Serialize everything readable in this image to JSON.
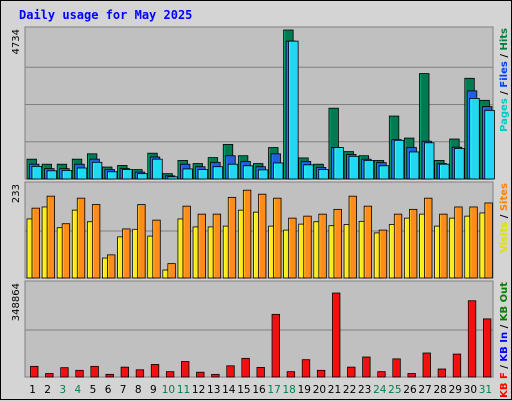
{
  "chart_data": {
    "type": "bar",
    "title": "Daily usage for May 2025",
    "days": [
      "1",
      "2",
      "3",
      "4",
      "5",
      "6",
      "7",
      "8",
      "9",
      "10",
      "11",
      "12",
      "13",
      "14",
      "15",
      "16",
      "17",
      "18",
      "19",
      "20",
      "21",
      "22",
      "23",
      "24",
      "25",
      "26",
      "27",
      "28",
      "29",
      "30",
      "31"
    ],
    "weekend_days": [
      "3",
      "4",
      "10",
      "11",
      "17",
      "18",
      "24",
      "25",
      "31"
    ],
    "panels": [
      {
        "id": "pages-files-hits",
        "max_label": "4734",
        "ymax": 4734,
        "legend": [
          {
            "name": "Pages",
            "color": "#00c8c8"
          },
          {
            "name": "Files",
            "color": "#0040ff"
          },
          {
            "name": "Hits",
            "color": "#008040"
          }
        ],
        "series": [
          {
            "name": "Hits",
            "color": "#007a50",
            "values": [
              630,
              470,
              470,
              630,
              800,
              380,
              430,
              300,
              820,
              170,
              590,
              490,
              680,
              1100,
              740,
              490,
              1000,
              4734,
              670,
              470,
              2250,
              870,
              740,
              590,
              2000,
              1300,
              3350,
              590,
              1270,
              3200,
              2500
            ]
          },
          {
            "name": "Files",
            "color": "#2060e0",
            "values": [
              470,
              330,
              330,
              470,
              630,
              300,
              330,
              220,
              700,
              100,
              470,
              390,
              530,
              740,
              560,
              390,
              800,
              4380,
              560,
              370,
              1000,
              780,
              630,
              520,
              1250,
              1000,
              1200,
              490,
              1010,
              2800,
              2300
            ]
          },
          {
            "name": "Pages",
            "color": "#20d8f0",
            "values": [
              400,
              260,
              270,
              350,
              530,
              230,
              300,
              170,
              630,
              70,
              320,
              300,
              390,
              470,
              420,
              290,
              510,
              4380,
              450,
              300,
              1000,
              720,
              590,
              420,
              1230,
              860,
              1150,
              470,
              970,
              2560,
              2180
            ]
          }
        ]
      },
      {
        "id": "visits-sites",
        "max_label": "233",
        "ymax": 233,
        "legend": [
          {
            "name": "Visits",
            "color": "#e0e000"
          },
          {
            "name": "Sites",
            "color": "#ff8000"
          }
        ],
        "series": [
          {
            "name": "Visits",
            "color": "#ffe820",
            "values": [
              148,
              178,
              126,
              170,
              141,
              50,
              103,
              122,
              105,
              20,
              148,
              128,
              128,
              130,
              170,
              165,
              130,
              120,
              135,
              141,
              131,
              134,
              142,
              113,
              134,
              150,
              160,
              130,
              150,
              155,
              163
            ]
          },
          {
            "name": "Sites",
            "color": "#ff8c1a",
            "values": [
              175,
              205,
              136,
              200,
              184,
              58,
              123,
              184,
              145,
              36,
              180,
              160,
              160,
              202,
              220,
              210,
              200,
              150,
              155,
              160,
              172,
              205,
              180,
              120,
              160,
              172,
              200,
              160,
              178,
              178,
              188
            ]
          }
        ]
      },
      {
        "id": "kb-in-out",
        "max_label": "348864",
        "ymax": 348864,
        "legend": [
          {
            "name": "KB F",
            "color": "#ff0000"
          },
          {
            "name": "KB In",
            "color": "#0000ff"
          },
          {
            "name": "KB Out",
            "color": "#008000"
          }
        ],
        "series": [
          {
            "name": "KB F",
            "color": "#f01010",
            "values": [
              40000,
              13000,
              35000,
              25000,
              40000,
              10000,
              37000,
              27000,
              47000,
              20000,
              58000,
              18000,
              10000,
              42000,
              70000,
              36000,
              235000,
              20000,
              65000,
              25000,
              315000,
              37000,
              75000,
              20000,
              68000,
              13000,
              90000,
              30000,
              86000,
              286000,
              218000
            ]
          }
        ]
      }
    ]
  }
}
